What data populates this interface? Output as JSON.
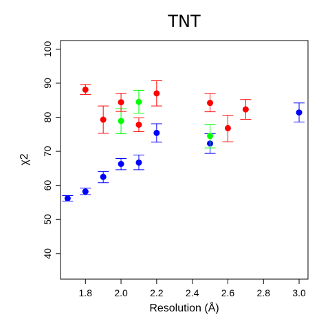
{
  "chart_data": {
    "type": "scatter",
    "title": "TNT",
    "xlabel": "Resolution (Å)",
    "ylabel": "χ2",
    "xlim": [
      1.66,
      3.05
    ],
    "ylim": [
      32.5,
      102.5
    ],
    "xticks": [
      1.8,
      2.0,
      2.2,
      2.4,
      2.6,
      2.8,
      3.0
    ],
    "xtick_labels": [
      "1.8",
      "2.0",
      "2.2",
      "2.4",
      "2.6",
      "2.8",
      "3.0"
    ],
    "yticks": [
      40,
      50,
      60,
      70,
      80,
      90,
      100
    ],
    "ytick_labels": [
      "40",
      "50",
      "60",
      "70",
      "80",
      "90",
      "100"
    ],
    "grid": false,
    "error_bars": true,
    "series": [
      {
        "color": "#0000ff",
        "points": [
          {
            "x": 1.7,
            "y": 56.2,
            "err_low": 55.4,
            "err_high": 57.0
          },
          {
            "x": 1.8,
            "y": 58.2,
            "err_low": 57.3,
            "err_high": 59.2
          },
          {
            "x": 1.9,
            "y": 62.5,
            "err_low": 60.8,
            "err_high": 64.1
          },
          {
            "x": 2.0,
            "y": 66.3,
            "err_low": 64.6,
            "err_high": 67.9
          },
          {
            "x": 2.1,
            "y": 66.7,
            "err_low": 64.6,
            "err_high": 68.9
          },
          {
            "x": 2.2,
            "y": 75.4,
            "err_low": 72.7,
            "err_high": 78.1
          },
          {
            "x": 2.5,
            "y": 72.3,
            "err_low": 69.4,
            "err_high": 75.2
          },
          {
            "x": 3.0,
            "y": 81.4,
            "err_low": 78.6,
            "err_high": 84.2
          }
        ]
      },
      {
        "color": "#00ff00",
        "points": [
          {
            "x": 2.0,
            "y": 78.9,
            "err_low": 75.2,
            "err_high": 82.5
          },
          {
            "x": 2.1,
            "y": 84.5,
            "err_low": 81.2,
            "err_high": 87.9
          },
          {
            "x": 2.5,
            "y": 74.5,
            "err_low": 71.0,
            "err_high": 77.8
          }
        ]
      },
      {
        "color": "#ff0000",
        "points": [
          {
            "x": 1.8,
            "y": 88.1,
            "err_low": 86.7,
            "err_high": 89.6
          },
          {
            "x": 1.9,
            "y": 79.3,
            "err_low": 75.3,
            "err_high": 83.3
          },
          {
            "x": 2.0,
            "y": 84.4,
            "err_low": 81.7,
            "err_high": 87.0
          },
          {
            "x": 2.1,
            "y": 77.8,
            "err_low": 75.8,
            "err_high": 79.8
          },
          {
            "x": 2.2,
            "y": 87.0,
            "err_low": 83.3,
            "err_high": 90.7
          },
          {
            "x": 2.5,
            "y": 84.2,
            "err_low": 81.6,
            "err_high": 86.9
          },
          {
            "x": 2.6,
            "y": 76.8,
            "err_low": 72.8,
            "err_high": 80.6
          },
          {
            "x": 2.7,
            "y": 82.3,
            "err_low": 79.4,
            "err_high": 85.2
          }
        ]
      }
    ]
  }
}
